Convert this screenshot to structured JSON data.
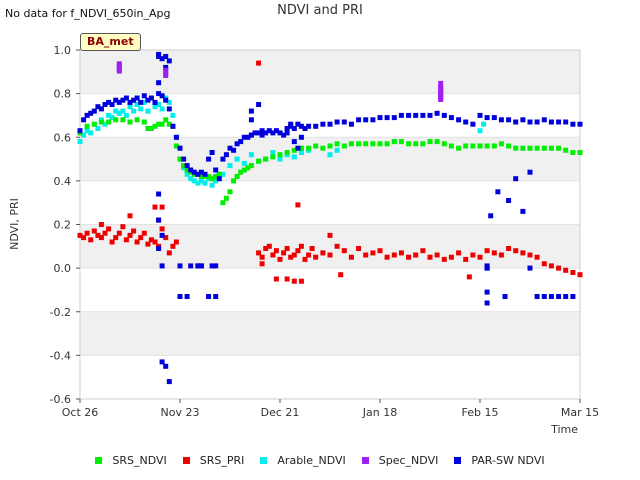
{
  "header": {
    "title": "NDVI and PRI",
    "no_data_note": "No data for f_NDVI_650in_Apg"
  },
  "site_badge": "BA_met",
  "colors": {
    "SRS_NDVI": "#00ee00",
    "SRS_PRI": "#ee0000",
    "Arable_NDVI": "#00eeee",
    "Spec_NDVI": "#a020f0",
    "PAR-SW NDVI": "#0000dd"
  },
  "chart_data": {
    "type": "scatter",
    "title": "NDVI and PRI",
    "xlabel": "Time",
    "ylabel": "NDVI, PRI",
    "xlim": [
      0,
      140
    ],
    "ylim": [
      -0.6,
      1.0
    ],
    "y_ticks": [
      -0.6,
      -0.4,
      -0.2,
      0.0,
      0.2,
      0.4,
      0.6,
      0.8,
      1.0
    ],
    "y_tick_labels": [
      "-0.6",
      "-0.4",
      "-0.2",
      "0.0",
      "0.2",
      "0.4",
      "0.6",
      "0.8",
      "1.0"
    ],
    "x_ticks": [
      0,
      28,
      56,
      84,
      112,
      140
    ],
    "x_tick_labels": [
      "Oct 26",
      "Nov 23",
      "Dec 21",
      "Jan 18",
      "Feb 15",
      "Mar 15"
    ],
    "x_unit": "days since Oct 26",
    "legend_position": "bottom",
    "series": [
      {
        "name": "SRS_NDVI",
        "x": [
          0,
          2,
          4,
          6,
          8,
          10,
          12,
          14,
          16,
          18,
          19,
          20,
          21,
          22,
          23,
          24,
          25,
          26,
          27,
          28,
          29,
          30,
          31,
          32,
          33,
          34,
          35,
          36,
          37,
          38,
          39,
          40,
          41,
          42,
          43,
          44,
          45,
          46,
          47,
          48,
          50,
          52,
          54,
          56,
          58,
          60,
          62,
          64,
          66,
          68,
          70,
          72,
          74,
          76,
          78,
          80,
          82,
          84,
          86,
          88,
          90,
          92,
          94,
          96,
          98,
          100,
          102,
          104,
          106,
          108,
          110,
          112,
          114,
          116,
          118,
          120,
          122,
          124,
          126,
          128,
          130,
          132,
          134,
          136,
          138,
          140
        ],
        "y": [
          0.62,
          0.65,
          0.66,
          0.67,
          0.67,
          0.68,
          0.68,
          0.67,
          0.68,
          0.67,
          0.64,
          0.64,
          0.65,
          0.66,
          0.66,
          0.68,
          0.66,
          0.65,
          0.56,
          0.5,
          0.47,
          0.45,
          0.44,
          0.43,
          0.43,
          0.42,
          0.42,
          0.42,
          0.41,
          0.42,
          0.43,
          0.3,
          0.32,
          0.35,
          0.4,
          0.42,
          0.44,
          0.45,
          0.46,
          0.47,
          0.49,
          0.5,
          0.51,
          0.52,
          0.53,
          0.54,
          0.55,
          0.55,
          0.56,
          0.55,
          0.56,
          0.57,
          0.56,
          0.57,
          0.57,
          0.57,
          0.57,
          0.57,
          0.57,
          0.58,
          0.58,
          0.57,
          0.57,
          0.57,
          0.58,
          0.58,
          0.57,
          0.56,
          0.55,
          0.56,
          0.56,
          0.56,
          0.56,
          0.56,
          0.57,
          0.56,
          0.55,
          0.55,
          0.55,
          0.55,
          0.55,
          0.55,
          0.55,
          0.54,
          0.53,
          0.53
        ]
      },
      {
        "name": "SRS_PRI",
        "x": [
          0,
          1,
          2,
          3,
          4,
          5,
          6,
          7,
          8,
          9,
          10,
          11,
          12,
          13,
          14,
          15,
          16,
          17,
          18,
          19,
          20,
          21,
          22,
          23,
          24,
          25,
          26,
          27,
          6,
          14,
          21,
          22,
          23,
          50,
          51,
          52,
          53,
          54,
          55,
          56,
          57,
          58,
          59,
          60,
          61,
          62,
          63,
          64,
          65,
          66,
          68,
          70,
          72,
          74,
          76,
          78,
          80,
          82,
          84,
          86,
          88,
          90,
          92,
          94,
          96,
          98,
          100,
          102,
          104,
          106,
          108,
          110,
          112,
          114,
          116,
          118,
          120,
          122,
          124,
          126,
          128,
          130,
          132,
          134,
          136,
          138,
          140,
          55,
          58,
          60,
          61,
          62,
          70,
          73,
          109,
          50,
          51
        ],
        "y": [
          0.15,
          0.14,
          0.16,
          0.13,
          0.17,
          0.15,
          0.14,
          0.16,
          0.18,
          0.12,
          0.14,
          0.16,
          0.19,
          0.13,
          0.15,
          0.17,
          0.12,
          0.14,
          0.16,
          0.11,
          0.13,
          0.12,
          0.1,
          0.18,
          0.14,
          0.07,
          0.1,
          0.12,
          0.2,
          0.24,
          0.28,
          0.22,
          0.28,
          0.07,
          0.05,
          0.09,
          0.1,
          0.06,
          0.08,
          0.04,
          0.07,
          0.09,
          0.05,
          0.06,
          0.08,
          0.1,
          0.04,
          0.06,
          0.09,
          0.05,
          0.07,
          0.06,
          0.1,
          0.08,
          0.05,
          0.09,
          0.06,
          0.07,
          0.08,
          0.05,
          0.06,
          0.07,
          0.05,
          0.06,
          0.08,
          0.05,
          0.06,
          0.04,
          0.05,
          0.07,
          0.04,
          0.06,
          0.05,
          0.08,
          0.07,
          0.06,
          0.09,
          0.08,
          0.07,
          0.06,
          0.05,
          0.02,
          0.01,
          0.0,
          -0.01,
          -0.02,
          -0.03,
          -0.05,
          -0.05,
          -0.06,
          0.29,
          -0.06,
          0.15,
          -0.03,
          -0.04,
          0.94,
          0.02
        ]
      },
      {
        "name": "Arable_NDVI",
        "x": [
          0,
          1,
          2,
          3,
          4,
          5,
          6,
          7,
          8,
          9,
          10,
          11,
          12,
          13,
          14,
          15,
          16,
          17,
          18,
          19,
          20,
          21,
          22,
          23,
          24,
          25,
          26,
          27,
          28,
          29,
          30,
          31,
          32,
          33,
          34,
          35,
          36,
          37,
          38,
          40,
          42,
          44,
          46,
          48,
          50,
          52,
          54,
          56,
          58,
          60,
          62,
          64,
          70,
          72,
          88,
          112,
          113
        ],
        "y": [
          0.58,
          0.61,
          0.63,
          0.62,
          0.66,
          0.64,
          0.68,
          0.66,
          0.7,
          0.69,
          0.72,
          0.71,
          0.72,
          0.7,
          0.74,
          0.72,
          0.75,
          0.73,
          0.76,
          0.72,
          0.78,
          0.74,
          0.75,
          0.73,
          0.78,
          0.76,
          0.7,
          0.6,
          0.55,
          0.46,
          0.43,
          0.41,
          0.4,
          0.39,
          0.4,
          0.39,
          0.41,
          0.38,
          0.4,
          0.43,
          0.47,
          0.5,
          0.48,
          0.52,
          0.49,
          0.5,
          0.53,
          0.5,
          0.52,
          0.51,
          0.53,
          0.54,
          0.52,
          0.54,
          0.58,
          0.63,
          0.66
        ]
      },
      {
        "name": "Spec_NDVI",
        "x": [
          11,
          11,
          11,
          24,
          24,
          101,
          101,
          101,
          101,
          101
        ],
        "y": [
          0.92,
          0.93,
          0.91,
          0.9,
          0.89,
          0.84,
          0.82,
          0.8,
          0.79,
          0.78
        ]
      },
      {
        "name": "PAR-SW NDVI",
        "x": [
          0,
          1,
          2,
          3,
          4,
          5,
          6,
          7,
          8,
          9,
          10,
          11,
          12,
          13,
          14,
          15,
          16,
          17,
          18,
          19,
          20,
          21,
          22,
          23,
          24,
          25,
          26,
          27,
          28,
          29,
          30,
          31,
          32,
          33,
          34,
          35,
          36,
          37,
          38,
          39,
          40,
          41,
          42,
          43,
          44,
          45,
          46,
          47,
          48,
          49,
          50,
          51,
          52,
          53,
          54,
          55,
          56,
          57,
          58,
          59,
          60,
          61,
          62,
          63,
          64,
          66,
          68,
          70,
          72,
          74,
          76,
          78,
          80,
          82,
          84,
          86,
          88,
          90,
          92,
          94,
          96,
          98,
          100,
          102,
          104,
          106,
          108,
          110,
          112,
          114,
          116,
          118,
          120,
          122,
          124,
          126,
          128,
          130,
          132,
          134,
          136,
          138,
          140,
          22,
          22,
          23,
          24,
          24,
          25,
          22,
          22,
          22,
          22,
          23,
          23,
          28,
          30,
          33,
          34,
          36,
          37,
          38,
          23,
          24,
          25,
          28,
          31,
          33,
          34,
          38,
          114,
          114,
          115,
          117,
          120,
          124,
          126,
          128,
          130,
          132,
          134,
          136,
          138,
          114,
          114,
          114,
          119,
          122,
          126,
          48,
          48,
          48,
          50,
          51,
          58,
          59,
          60,
          61,
          62
        ],
        "y": [
          0.63,
          0.68,
          0.7,
          0.71,
          0.72,
          0.74,
          0.73,
          0.75,
          0.76,
          0.75,
          0.77,
          0.76,
          0.77,
          0.78,
          0.76,
          0.77,
          0.78,
          0.76,
          0.79,
          0.77,
          0.78,
          0.76,
          0.8,
          0.79,
          0.77,
          0.73,
          0.65,
          0.6,
          0.55,
          0.5,
          0.47,
          0.45,
          0.44,
          0.43,
          0.44,
          0.43,
          0.5,
          0.53,
          0.45,
          0.41,
          0.5,
          0.52,
          0.55,
          0.54,
          0.57,
          0.58,
          0.6,
          0.6,
          0.61,
          0.62,
          0.62,
          0.61,
          0.62,
          0.63,
          0.62,
          0.63,
          0.62,
          0.61,
          0.64,
          0.65,
          0.64,
          0.66,
          0.65,
          0.64,
          0.65,
          0.65,
          0.66,
          0.66,
          0.67,
          0.67,
          0.66,
          0.68,
          0.68,
          0.68,
          0.69,
          0.69,
          0.69,
          0.7,
          0.7,
          0.7,
          0.7,
          0.7,
          0.71,
          0.7,
          0.69,
          0.68,
          0.67,
          0.66,
          0.7,
          0.69,
          0.69,
          0.68,
          0.68,
          0.67,
          0.68,
          0.67,
          0.67,
          0.68,
          0.67,
          0.67,
          0.67,
          0.66,
          0.66,
          0.98,
          0.97,
          0.96,
          0.92,
          0.97,
          0.95,
          0.85,
          0.34,
          0.22,
          0.09,
          0.01,
          0.15,
          -0.13,
          -0.13,
          0.01,
          0.01,
          -0.13,
          0.01,
          -0.13,
          -0.43,
          -0.45,
          -0.52,
          0.01,
          0.01,
          0.01,
          0.01,
          0.01,
          0.0,
          0.01,
          0.24,
          0.35,
          0.31,
          0.26,
          0.0,
          -0.13,
          -0.13,
          -0.13,
          -0.13,
          -0.13,
          -0.13,
          0.0,
          -0.16,
          -0.11,
          -0.13,
          0.41,
          0.44,
          0.61,
          0.68,
          0.72,
          0.75,
          0.63,
          0.62,
          0.66,
          0.58,
          0.55,
          0.6
        ]
      }
    ]
  }
}
